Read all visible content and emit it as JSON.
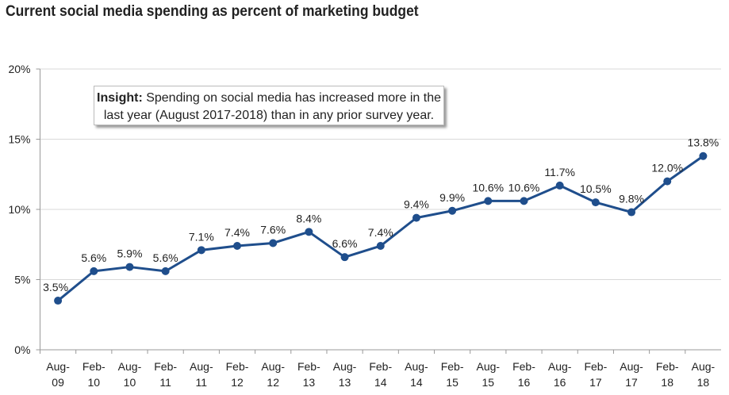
{
  "chart_data": {
    "type": "line",
    "title": "Current social media spending as percent of marketing budget",
    "xlabel": "",
    "ylabel": "",
    "categories": [
      [
        "Aug-",
        "09"
      ],
      [
        "Feb-",
        "10"
      ],
      [
        "Aug-",
        "10"
      ],
      [
        "Feb-",
        "11"
      ],
      [
        "Aug-",
        "11"
      ],
      [
        "Feb-",
        "12"
      ],
      [
        "Aug-",
        "12"
      ],
      [
        "Feb-",
        "13"
      ],
      [
        "Aug-",
        "13"
      ],
      [
        "Feb-",
        "14"
      ],
      [
        "Aug-",
        "14"
      ],
      [
        "Feb-",
        "15"
      ],
      [
        "Aug-",
        "15"
      ],
      [
        "Feb-",
        "16"
      ],
      [
        "Aug-",
        "16"
      ],
      [
        "Feb-",
        "17"
      ],
      [
        "Aug-",
        "17"
      ],
      [
        "Feb-",
        "18"
      ],
      [
        "Aug-",
        "18"
      ]
    ],
    "series": [
      {
        "name": "Social media spending",
        "values": [
          3.5,
          5.6,
          5.9,
          5.6,
          7.1,
          7.4,
          7.6,
          8.4,
          6.6,
          7.4,
          9.4,
          9.9,
          10.6,
          10.6,
          11.7,
          10.5,
          9.8,
          12.0,
          13.8
        ],
        "color": "#1f4e8c"
      }
    ],
    "data_labels": [
      "3.5%",
      "5.6%",
      "5.9%",
      "5.6%",
      "7.1%",
      "7.4%",
      "7.6%",
      "8.4%",
      "6.6%",
      "7.4%",
      "9.4%",
      "9.9%",
      "10.6%",
      "10.6%",
      "11.7%",
      "10.5%",
      "9.8%",
      "12.0%",
      "13.8%"
    ],
    "yticks": [
      0,
      5,
      10,
      15,
      20
    ],
    "ytick_labels": [
      "0%",
      "5%",
      "10%",
      "15%",
      "20%"
    ],
    "ylim": [
      0,
      20
    ],
    "grid": true,
    "legend": "none"
  },
  "insight": {
    "label": "Insight:",
    "text": " Spending on social media has increased more in the last year (August 2017-2018) than in any prior survey year."
  }
}
